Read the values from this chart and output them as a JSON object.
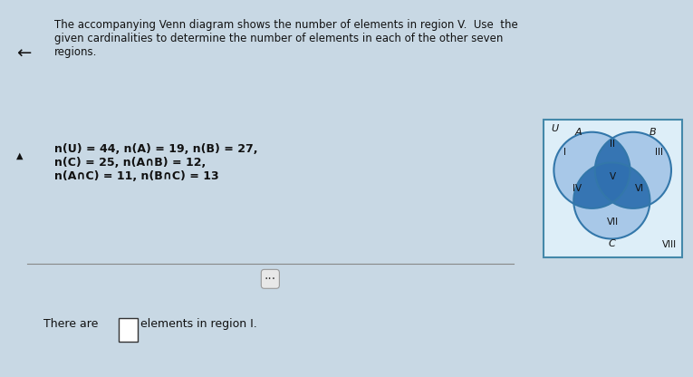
{
  "title_text": "The accompanying Venn diagram shows the number of elements in region V.  Use  the\ngiven cardinalities to determine the number of elements in each of the other seven\nregions.",
  "given_text": "n(U) = 44, n(A) = 19, n(B) = 27,\nn(C) = 25, n(A∩B) = 12,\nn(A∩C) = 11, n(B∩C) = 13",
  "question_text": "There are",
  "question_suffix": "elements in region I.",
  "color_light_blue": "#a8c8e8",
  "color_medium_blue": "#6aaad4",
  "color_dark_blue": "#3070b0",
  "text_color": "#111111",
  "bg_color": "#c8d8e4",
  "venn_bg": "#ddeef8",
  "venn_border": "#4488aa",
  "circle_edge": "#3377aa",
  "label_fontsize": 8,
  "region_fontsize": 7.5
}
